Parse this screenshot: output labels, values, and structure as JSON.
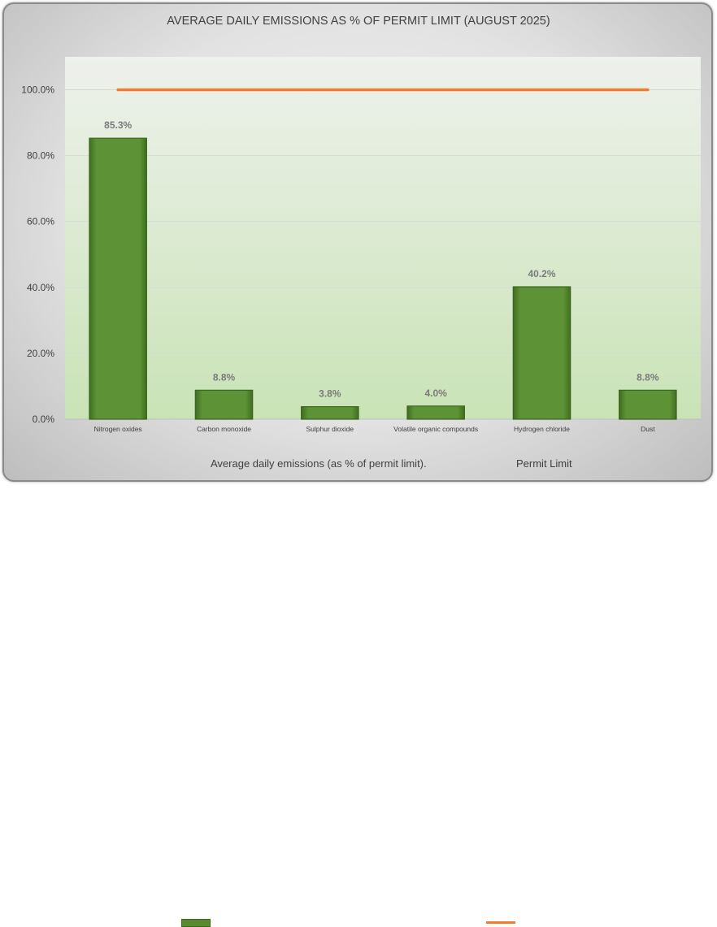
{
  "chart_data": {
    "type": "bar",
    "title": "AVERAGE DAILY EMISSIONS AS % OF PERMIT LIMIT (AUGUST 2025)",
    "categories": [
      "Nitrogen oxides",
      "Carbon monoxide",
      "Sulphur dioxide",
      "Volatile organic compounds",
      "Hydrogen chloride",
      "Dust"
    ],
    "series": [
      {
        "name": "Average daily emissions (as % of permit limit).",
        "type": "bar",
        "color": "#5a8a30",
        "values": [
          85.3,
          8.8,
          3.8,
          4.0,
          40.2,
          8.8
        ],
        "labels": [
          "85.3%",
          "8.8%",
          "3.8%",
          "4.0%",
          "40.2%",
          "8.8%"
        ]
      },
      {
        "name": "Permit Limit",
        "type": "line",
        "color": "#ed7d31",
        "values": [
          100,
          100,
          100,
          100,
          100,
          100
        ]
      }
    ],
    "ylim": [
      0,
      110
    ],
    "yticks": [
      0,
      20,
      40,
      60,
      80,
      100
    ],
    "ytick_labels": [
      "0.0%",
      "20.0%",
      "40.0%",
      "60.0%",
      "80.0%",
      "100.0%"
    ],
    "grid": true,
    "legend_position": "bottom"
  }
}
